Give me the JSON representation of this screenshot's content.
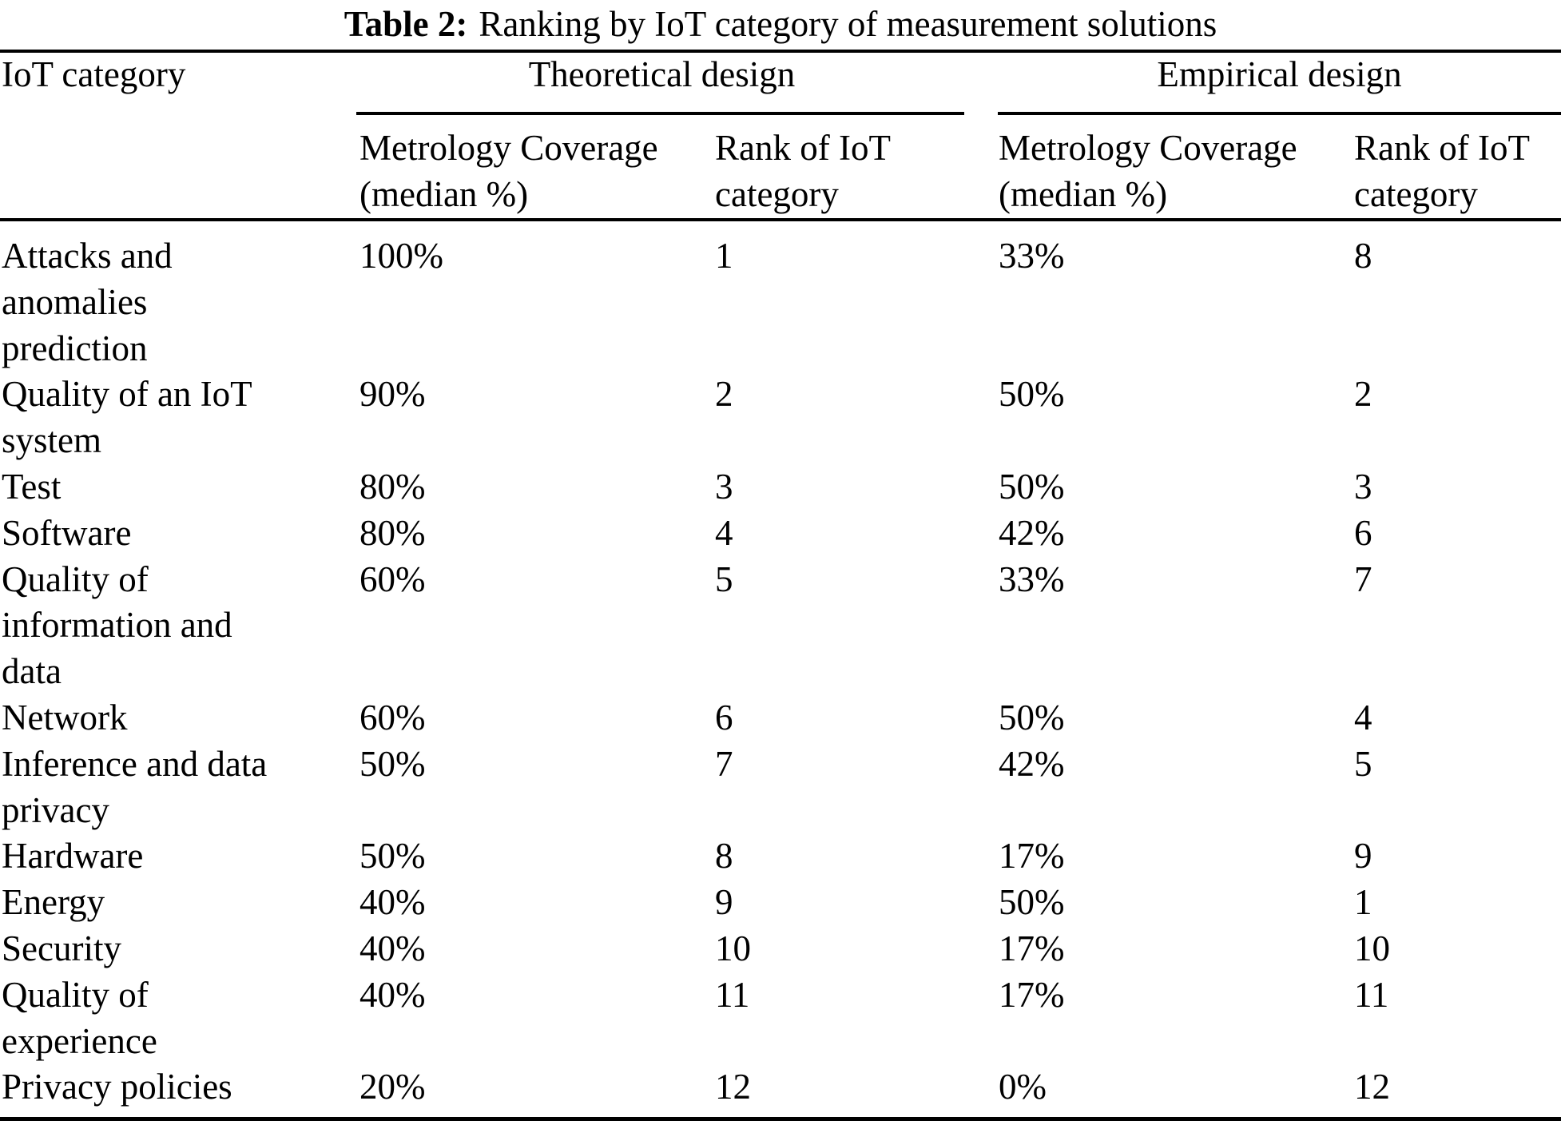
{
  "caption": {
    "label": "Table 2:",
    "text": "Ranking by IoT category of measurement solutions"
  },
  "header": {
    "iot_category": "IoT category",
    "theoretical_group": "Theoretical design",
    "empirical_group": "Empirical design",
    "coverage_subheader": "Metrology Coverage\n(median %)",
    "rank_subheader": "Rank of IoT\ncategory"
  },
  "rows": [
    {
      "category": "Attacks and\nanomalies\nprediction",
      "theoretical_coverage": "100%",
      "theoretical_rank": "1",
      "empirical_coverage": "33%",
      "empirical_rank": "8"
    },
    {
      "category": "Quality of an IoT\nsystem",
      "theoretical_coverage": "90%",
      "theoretical_rank": "2",
      "empirical_coverage": "50%",
      "empirical_rank": "2"
    },
    {
      "category": "Test",
      "theoretical_coverage": "80%",
      "theoretical_rank": "3",
      "empirical_coverage": "50%",
      "empirical_rank": "3"
    },
    {
      "category": "Software",
      "theoretical_coverage": "80%",
      "theoretical_rank": "4",
      "empirical_coverage": "42%",
      "empirical_rank": "6"
    },
    {
      "category": "Quality of\ninformation and\ndata",
      "theoretical_coverage": "60%",
      "theoretical_rank": "5",
      "empirical_coverage": "33%",
      "empirical_rank": "7"
    },
    {
      "category": "Network",
      "theoretical_coverage": "60%",
      "theoretical_rank": "6",
      "empirical_coverage": "50%",
      "empirical_rank": "4"
    },
    {
      "category": "Inference and data\nprivacy",
      "theoretical_coverage": "50%",
      "theoretical_rank": "7",
      "empirical_coverage": "42%",
      "empirical_rank": "5"
    },
    {
      "category": "Hardware",
      "theoretical_coverage": "50%",
      "theoretical_rank": "8",
      "empirical_coverage": "17%",
      "empirical_rank": "9"
    },
    {
      "category": "Energy",
      "theoretical_coverage": "40%",
      "theoretical_rank": "9",
      "empirical_coverage": "50%",
      "empirical_rank": "1"
    },
    {
      "category": "Security",
      "theoretical_coverage": "40%",
      "theoretical_rank": "10",
      "empirical_coverage": "17%",
      "empirical_rank": "10"
    },
    {
      "category": "Quality of\nexperience",
      "theoretical_coverage": "40%",
      "theoretical_rank": "11",
      "empirical_coverage": "17%",
      "empirical_rank": "11"
    },
    {
      "category": "Privacy policies",
      "theoretical_coverage": "20%",
      "theoretical_rank": "12",
      "empirical_coverage": "0%",
      "empirical_rank": "12"
    }
  ]
}
